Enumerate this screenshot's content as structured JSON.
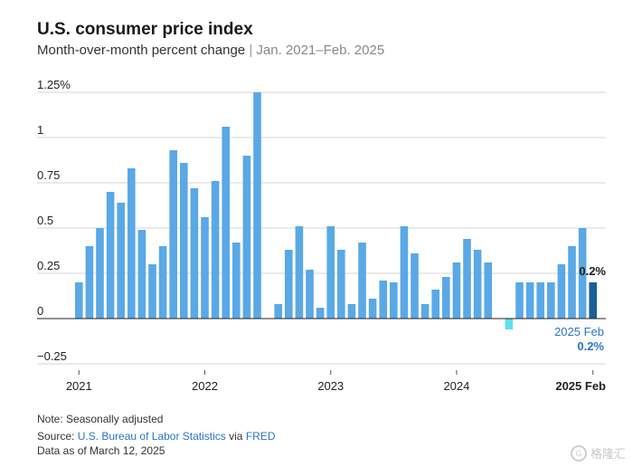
{
  "header": {
    "title": "U.S. consumer price index",
    "subtitle_main": "Month-over-month percent change",
    "subtitle_sep": "|",
    "subtitle_range": "Jan. 2021–Feb. 2025"
  },
  "footer": {
    "note": "Note: Seasonally adjusted",
    "source_prefix": "Source: ",
    "source_bls": "U.S. Bureau of Labor Statistics",
    "source_via": " via ",
    "source_fred": "FRED",
    "data_as_of": "Data as of March 12, 2025"
  },
  "watermark": {
    "text": "格隆汇",
    "icon": "g-logo-icon"
  },
  "colors": {
    "bar": "#5aa8e6",
    "bar_negative": "#5ce0ec",
    "bar_highlight": "#1b5f96",
    "grid": "#d4d4d4",
    "zero_line": "#222222",
    "callout": "#2a74c9"
  },
  "chart_data": {
    "type": "bar",
    "title": "U.S. consumer price index",
    "subtitle": "Month-over-month percent change | Jan. 2021–Feb. 2025",
    "ylim": [
      -0.25,
      1.25
    ],
    "yticks": [
      -0.25,
      0,
      0.25,
      0.5,
      0.75,
      1,
      1.25
    ],
    "ytick_labels": [
      "−0.25",
      "0",
      "0.25",
      "0.5",
      "0.75",
      "1",
      "1.25%"
    ],
    "xtick_labels": [
      {
        "label": "2021",
        "index": 0,
        "bold": false
      },
      {
        "label": "2022",
        "index": 12,
        "bold": false
      },
      {
        "label": "2023",
        "index": 24,
        "bold": false
      },
      {
        "label": "2024",
        "index": 36,
        "bold": false
      },
      {
        "label": "2025 Feb",
        "index": 49,
        "bold": true
      }
    ],
    "categories": [
      "2021-01",
      "2021-02",
      "2021-03",
      "2021-04",
      "2021-05",
      "2021-06",
      "2021-07",
      "2021-08",
      "2021-09",
      "2021-10",
      "2021-11",
      "2021-12",
      "2022-01",
      "2022-02",
      "2022-03",
      "2022-04",
      "2022-05",
      "2022-06",
      "2022-07",
      "2022-08",
      "2022-09",
      "2022-10",
      "2022-11",
      "2022-12",
      "2023-01",
      "2023-02",
      "2023-03",
      "2023-04",
      "2023-05",
      "2023-06",
      "2023-07",
      "2023-08",
      "2023-09",
      "2023-10",
      "2023-11",
      "2023-12",
      "2024-01",
      "2024-02",
      "2024-03",
      "2024-04",
      "2024-05",
      "2024-06",
      "2024-07",
      "2024-08",
      "2024-09",
      "2024-10",
      "2024-11",
      "2024-12",
      "2025-01",
      "2025-02"
    ],
    "values": [
      0.2,
      0.4,
      0.5,
      0.7,
      0.64,
      0.83,
      0.49,
      0.3,
      0.4,
      0.93,
      0.86,
      0.72,
      0.56,
      0.76,
      1.06,
      0.42,
      0.9,
      1.25,
      0.0,
      0.08,
      0.38,
      0.51,
      0.27,
      0.06,
      0.51,
      0.38,
      0.08,
      0.42,
      0.11,
      0.21,
      0.2,
      0.51,
      0.36,
      0.08,
      0.16,
      0.23,
      0.31,
      0.44,
      0.38,
      0.31,
      0.0,
      -0.06,
      0.2,
      0.2,
      0.2,
      0.2,
      0.3,
      0.4,
      0.5,
      0.2
    ],
    "highlight_index": 49,
    "annotations": [
      {
        "text": "0.2%",
        "index": 49,
        "placement": "above-bar"
      },
      {
        "text": "2025 Feb",
        "index": 49,
        "placement": "below-zero"
      },
      {
        "text": "0.2%",
        "index": 49,
        "placement": "below-zero-second-line"
      }
    ],
    "grid": true
  }
}
